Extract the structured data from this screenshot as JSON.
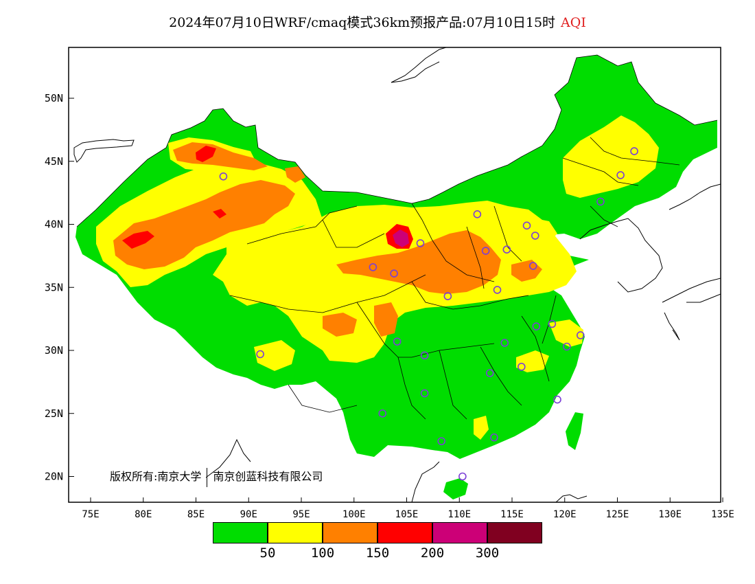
{
  "title": {
    "product": "2024年07月10日WRF/cmaq模式36km预报产品:07月10日15时",
    "variable": "AQI"
  },
  "axes": {
    "lat_labels": [
      "50N",
      "45N",
      "40N",
      "35N",
      "30N",
      "25N",
      "20N"
    ],
    "lon_labels": [
      "75E",
      "80E",
      "85E",
      "90E",
      "95E",
      "100E",
      "105E",
      "110E",
      "115E",
      "120E",
      "125E",
      "130E",
      "135E"
    ]
  },
  "copyright": {
    "left": "版权所有:南京大学",
    "right": "南京创蓝科技有限公司"
  },
  "legend": {
    "colors": [
      "#00dd00",
      "#ffff00",
      "#ff8000",
      "#ff0000",
      "#cc0077",
      "#800020"
    ],
    "labels": [
      "50",
      "100",
      "150",
      "200",
      "300"
    ]
  },
  "colors": {
    "good": "#00dd00",
    "moderate": "#ffff00",
    "unhealthy_sensitive": "#ff8000",
    "unhealthy": "#ff0000",
    "very_unhealthy": "#cc0077",
    "hazardous": "#800020",
    "station_marker": "#7b3fd6"
  },
  "stations_lonlat": [
    [
      87.6,
      43.8
    ],
    [
      91.1,
      29.7
    ],
    [
      101.8,
      36.6
    ],
    [
      103.8,
      36.1
    ],
    [
      104.1,
      30.7
    ],
    [
      106.3,
      38.5
    ],
    [
      106.7,
      29.6
    ],
    [
      106.7,
      26.6
    ],
    [
      102.7,
      25.0
    ],
    [
      108.3,
      22.8
    ],
    [
      110.3,
      20.0
    ],
    [
      108.9,
      34.3
    ],
    [
      111.7,
      40.8
    ],
    [
      112.5,
      37.9
    ],
    [
      114.5,
      38.0
    ],
    [
      116.4,
      39.9
    ],
    [
      117.2,
      39.1
    ],
    [
      113.6,
      34.8
    ],
    [
      117.0,
      36.7
    ],
    [
      112.9,
      28.2
    ],
    [
      114.3,
      30.6
    ],
    [
      115.9,
      28.7
    ],
    [
      117.3,
      31.9
    ],
    [
      118.8,
      32.1
    ],
    [
      120.2,
      30.3
    ],
    [
      121.5,
      31.2
    ],
    [
      119.3,
      26.1
    ],
    [
      113.3,
      23.1
    ],
    [
      123.4,
      41.8
    ],
    [
      125.3,
      43.9
    ],
    [
      126.6,
      45.8
    ]
  ]
}
